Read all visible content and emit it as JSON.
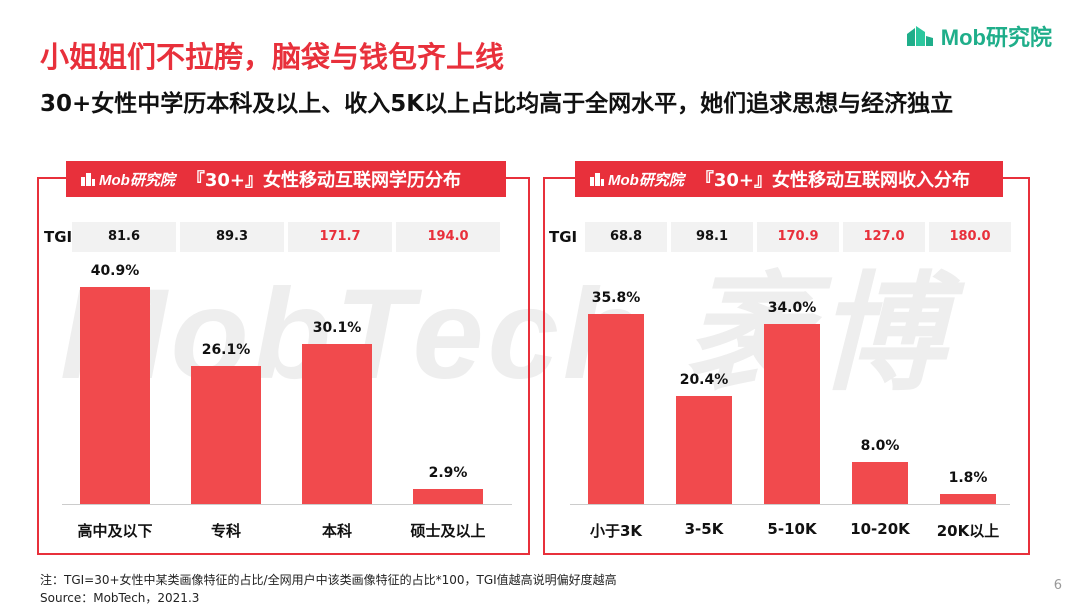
{
  "header": {
    "title": "小姐姐们不拉胯，脑袋与钱包齐上线",
    "subtitle": "30+女性中学历本科及以上、收入5K以上占比均高于全网水平，她们追求思想与经济独立",
    "logo_text": "Mob研究院"
  },
  "watermark": "MobTech 袤博",
  "tgi_label": "TGI",
  "chart_data": [
    {
      "type": "bar",
      "title": "『30+』女性移动互联网学历分布",
      "badge": "Mob研究院",
      "categories": [
        "高中及以下",
        "专科",
        "本科",
        "硕士及以上"
      ],
      "values": [
        40.9,
        26.1,
        30.1,
        2.9
      ],
      "value_labels": [
        "40.9%",
        "26.1%",
        "30.1%",
        "2.9%"
      ],
      "tgi": [
        "81.6",
        "89.3",
        "171.7",
        "194.0"
      ],
      "tgi_highlight": [
        false,
        false,
        true,
        true
      ],
      "unit": "%",
      "bar_color": "#f14a4d"
    },
    {
      "type": "bar",
      "title": "『30+』女性移动互联网收入分布",
      "badge": "Mob研究院",
      "categories": [
        "小于3K",
        "3-5K",
        "5-10K",
        "10-20K",
        "20K以上"
      ],
      "values": [
        35.8,
        20.4,
        34.0,
        8.0,
        1.8
      ],
      "value_labels": [
        "35.8%",
        "20.4%",
        "34.0%",
        "8.0%",
        "1.8%"
      ],
      "tgi": [
        "68.8",
        "98.1",
        "170.9",
        "127.0",
        "180.0"
      ],
      "tgi_highlight": [
        false,
        false,
        true,
        true,
        true
      ],
      "unit": "%",
      "bar_color": "#f14a4d"
    }
  ],
  "footer": {
    "note": "注：TGI=30+女性中某类画像特征的占比/全网用户中该类画像特征的占比*100，TGI值越高说明偏好度越高",
    "source": "Source：MobTech，2021.3",
    "page_number": "6"
  },
  "colors": {
    "accent": "#e8303b",
    "brand_green": "#1fae8a",
    "bar": "#f14a4d"
  }
}
